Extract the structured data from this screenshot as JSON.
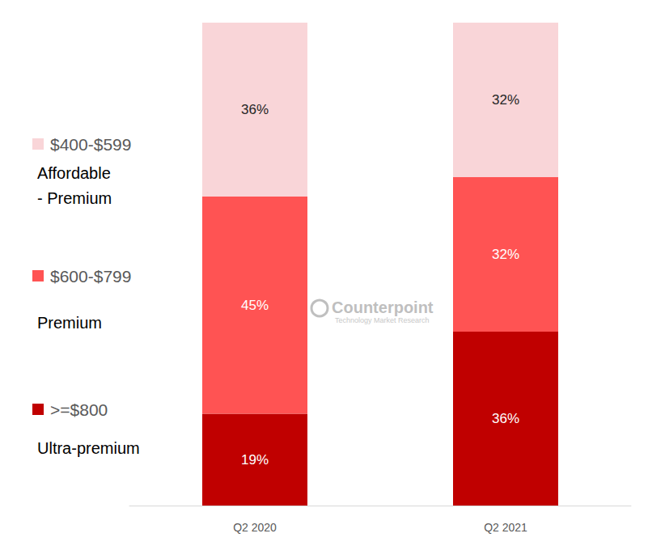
{
  "chart_data": {
    "type": "bar",
    "categories": [
      "Q2 2020",
      "Q2 2021"
    ],
    "series": [
      {
        "name": ">=$800",
        "description": "Ultra-premium",
        "color": "#C00000",
        "values": [
          19,
          36
        ],
        "value_labels": [
          "19%",
          "36%"
        ]
      },
      {
        "name": "$600-$799",
        "description": "Premium",
        "color": "#FF5353",
        "values": [
          45,
          32
        ],
        "value_labels": [
          "45%",
          "32%"
        ]
      },
      {
        "name": "$400-$599",
        "description": "Affordable\n- Premium",
        "color": "#F9D5D8",
        "values": [
          36,
          32
        ],
        "value_labels": [
          "36%",
          "32%"
        ]
      }
    ],
    "ylim": [
      0,
      100
    ],
    "stacked": true,
    "data_labels": true,
    "grid": false,
    "tick_labels": "x",
    "annotations": [
      "Counterpoint",
      "Technology Market Research"
    ]
  }
}
